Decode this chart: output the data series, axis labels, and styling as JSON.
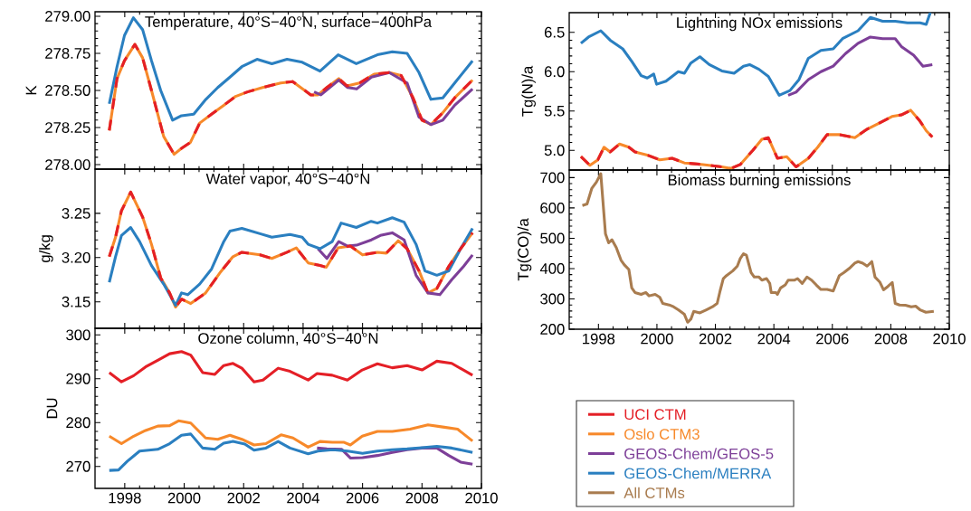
{
  "chart_data": [
    {
      "type": "line",
      "title": "Temperature, 40°S−40°N, surface−400hPa",
      "ylabel": "K",
      "xlim": [
        1997,
        2010
      ],
      "xticks": [
        1998,
        2000,
        2002,
        2004,
        2006,
        2008,
        2010
      ],
      "ylim": [
        277.97,
        279.03
      ],
      "yticks": [
        {
          "value": 278,
          "label": "278.00"
        },
        {
          "value": 278.25,
          "label": "278.25"
        },
        {
          "value": 278.5,
          "label": "278.50"
        },
        {
          "value": 278.75,
          "label": "278.75"
        },
        {
          "value": 279,
          "label": "279.00"
        }
      ],
      "tick_labels": "y",
      "legend": "bottom right",
      "series": [
        {
          "name": "UCI CTM",
          "color": "#e41f26",
          "line_style": "dashed",
          "x": [
            1997.48,
            1997.74,
            1997.99,
            1998.34,
            1998.6,
            1998.9,
            1999.31,
            1999.66,
            1999.91,
            2000.21,
            2000.52,
            2000.92,
            2001.33,
            2001.73,
            2002.13,
            2002.64,
            2003.25,
            2003.65,
            2004.26,
            2004.5,
            2004.8,
            2005.2,
            2005.48,
            2005.9,
            2006.39,
            2006.9,
            2007.3,
            2007.7,
            2008.0,
            2008.3,
            2008.7,
            2009.1,
            2009.7
          ],
          "values": [
            278.23,
            278.58,
            278.7,
            278.81,
            278.72,
            278.5,
            278.19,
            278.07,
            278.11,
            278.15,
            278.28,
            278.34,
            278.4,
            278.46,
            278.49,
            278.52,
            278.55,
            278.56,
            278.47,
            278.47,
            278.52,
            278.58,
            278.53,
            278.55,
            278.61,
            278.62,
            278.6,
            278.45,
            278.3,
            278.27,
            278.35,
            278.45,
            278.57
          ]
        },
        {
          "name": "Oslo CTM3",
          "color": "#f7892a",
          "x": [
            1997.48,
            1997.74,
            1997.99,
            1998.34,
            1998.6,
            1998.9,
            1999.31,
            1999.66,
            1999.91,
            2000.21,
            2000.52,
            2000.92,
            2001.33,
            2001.73,
            2002.13,
            2002.64,
            2003.25,
            2003.65,
            2004.26,
            2004.5,
            2004.8,
            2005.2,
            2005.48,
            2005.9,
            2006.39,
            2006.9,
            2007.3,
            2007.7,
            2008.0,
            2008.3,
            2008.7,
            2009.1,
            2009.7
          ],
          "values": [
            278.23,
            278.58,
            278.7,
            278.81,
            278.72,
            278.5,
            278.19,
            278.07,
            278.11,
            278.15,
            278.28,
            278.34,
            278.4,
            278.46,
            278.49,
            278.52,
            278.55,
            278.56,
            278.47,
            278.47,
            278.52,
            278.58,
            278.53,
            278.55,
            278.61,
            278.62,
            278.6,
            278.45,
            278.3,
            278.27,
            278.35,
            278.45,
            278.57
          ]
        },
        {
          "name": "GEOS-Chem/GEOS-5",
          "color": "#7d3f98",
          "x": [
            2004.37,
            2004.6,
            2005.2,
            2005.5,
            2005.8,
            2006.3,
            2006.9,
            2007.5,
            2007.9,
            2008.3,
            2008.7,
            2009.1,
            2009.7
          ],
          "values": [
            278.49,
            278.47,
            278.57,
            278.52,
            278.51,
            278.59,
            278.62,
            278.55,
            278.32,
            278.27,
            278.3,
            278.4,
            278.51
          ]
        },
        {
          "name": "GEOS-Chem/MERRA",
          "color": "#2a7fc0",
          "x": [
            1997.48,
            1997.74,
            1997.99,
            1998.29,
            1998.6,
            1998.9,
            1999.21,
            1999.61,
            1999.91,
            2000.32,
            2000.73,
            2001.13,
            2001.54,
            2001.94,
            2002.45,
            2002.95,
            2003.46,
            2003.97,
            2004.57,
            2005.18,
            2005.79,
            2006.5,
            2007.0,
            2007.5,
            2007.9,
            2008.3,
            2008.7,
            2009.1,
            2009.7
          ],
          "values": [
            278.41,
            278.66,
            278.87,
            278.99,
            278.91,
            278.7,
            278.5,
            278.3,
            278.33,
            278.34,
            278.44,
            278.52,
            278.59,
            278.66,
            278.71,
            278.68,
            278.71,
            278.69,
            278.63,
            278.74,
            278.68,
            278.74,
            278.76,
            278.75,
            278.62,
            278.44,
            278.45,
            278.55,
            278.7
          ]
        }
      ]
    },
    {
      "type": "line",
      "title": "Water vapor, 40°S−40°N",
      "ylabel": "g/kg",
      "xlim": [
        1997,
        2010
      ],
      "xticks": [
        1998,
        2000,
        2002,
        2004,
        2006,
        2008,
        2010
      ],
      "ylim": [
        3.12,
        3.3
      ],
      "yticks": [
        3.15,
        {
          "value": 3.2,
          "label": "3.20"
        },
        3.25
      ],
      "tick_labels": "y",
      "series": [
        {
          "color": "#e41f26",
          "line_style": "dashed",
          "x": [
            1997.48,
            1997.69,
            1997.89,
            1998.2,
            1998.6,
            1998.9,
            1999.21,
            1999.51,
            1999.71,
            1999.91,
            2000.22,
            2000.72,
            2001.23,
            2001.64,
            2001.94,
            2002.55,
            2002.95,
            2003.46,
            2003.77,
            2004.17,
            2004.57,
            2004.78,
            2005.18,
            2005.59,
            2006.0,
            2006.5,
            2006.8,
            2007.2,
            2007.5,
            2007.9,
            2008.2,
            2008.5,
            2008.9,
            2009.3,
            2009.7
          ],
          "values": [
            3.201,
            3.223,
            3.253,
            3.274,
            3.246,
            3.215,
            3.177,
            3.16,
            3.144,
            3.153,
            3.148,
            3.16,
            3.184,
            3.201,
            3.206,
            3.203,
            3.199,
            3.206,
            3.211,
            3.194,
            3.191,
            3.189,
            3.211,
            3.213,
            3.203,
            3.206,
            3.205,
            3.219,
            3.21,
            3.185,
            3.16,
            3.165,
            3.19,
            3.21,
            3.228
          ]
        },
        {
          "color": "#f7892a",
          "x": [
            1997.48,
            1997.69,
            1997.89,
            1998.2,
            1998.6,
            1998.9,
            1999.21,
            1999.51,
            1999.71,
            1999.91,
            2000.22,
            2000.72,
            2001.23,
            2001.64,
            2001.94,
            2002.55,
            2002.95,
            2003.46,
            2003.77,
            2004.17,
            2004.57,
            2004.78,
            2005.18,
            2005.59,
            2006.0,
            2006.5,
            2006.8,
            2007.2,
            2007.5,
            2007.9,
            2008.2,
            2008.5,
            2008.9,
            2009.3,
            2009.7
          ],
          "values": [
            3.201,
            3.223,
            3.253,
            3.274,
            3.246,
            3.215,
            3.177,
            3.16,
            3.144,
            3.153,
            3.148,
            3.16,
            3.184,
            3.201,
            3.206,
            3.203,
            3.199,
            3.206,
            3.211,
            3.194,
            3.191,
            3.189,
            3.211,
            3.213,
            3.203,
            3.206,
            3.205,
            3.219,
            3.21,
            3.185,
            3.16,
            3.165,
            3.19,
            3.21,
            3.228
          ]
        },
        {
          "color": "#7d3f98",
          "x": [
            2004.5,
            2004.8,
            2005.2,
            2005.5,
            2005.8,
            2006.3,
            2006.6,
            2007.0,
            2007.4,
            2007.8,
            2008.2,
            2008.6,
            2009.0,
            2009.4,
            2009.7
          ],
          "values": [
            3.21,
            3.199,
            3.218,
            3.213,
            3.214,
            3.22,
            3.225,
            3.228,
            3.22,
            3.18,
            3.16,
            3.158,
            3.175,
            3.19,
            3.203
          ]
        },
        {
          "color": "#2a7fc0",
          "x": [
            1997.48,
            1997.69,
            1997.89,
            1998.2,
            1998.5,
            1998.9,
            1999.31,
            1999.71,
            1999.91,
            2000.12,
            2000.52,
            2000.92,
            2001.33,
            2001.54,
            2001.94,
            2002.55,
            2002.95,
            2003.56,
            2003.97,
            2004.17,
            2004.57,
            2004.98,
            2005.28,
            2005.79,
            2006.29,
            2006.5,
            2007.0,
            2007.4,
            2007.8,
            2008.1,
            2008.5,
            2008.9,
            2009.3,
            2009.7
          ],
          "values": [
            3.172,
            3.201,
            3.225,
            3.234,
            3.218,
            3.191,
            3.17,
            3.146,
            3.16,
            3.158,
            3.17,
            3.187,
            3.218,
            3.23,
            3.233,
            3.227,
            3.223,
            3.226,
            3.223,
            3.215,
            3.21,
            3.218,
            3.239,
            3.234,
            3.241,
            3.239,
            3.245,
            3.24,
            3.215,
            3.185,
            3.18,
            3.185,
            3.21,
            3.233
          ]
        }
      ]
    },
    {
      "type": "line",
      "title": "Ozone column, 40°S−40°N",
      "ylabel": "DU",
      "xlim": [
        1997,
        2010
      ],
      "xticks": [
        1998,
        2000,
        2002,
        2004,
        2006,
        2008,
        2010
      ],
      "ylim": [
        265,
        301.5
      ],
      "yticks": [
        270,
        280,
        290,
        300
      ],
      "series": [
        {
          "color": "#e41f26",
          "x": [
            1997.48,
            1997.89,
            1998.3,
            1998.7,
            1999.11,
            1999.51,
            1999.91,
            2000.22,
            2000.62,
            2001.03,
            2001.33,
            2001.64,
            2001.94,
            2002.35,
            2002.65,
            2003.16,
            2003.56,
            2004.17,
            2004.47,
            2004.98,
            2005.49,
            2005.99,
            2006.5,
            2007.0,
            2007.5,
            2008.0,
            2008.5,
            2009.0,
            2009.7
          ],
          "values": [
            291.4,
            289.3,
            290.7,
            292.7,
            294.2,
            295.7,
            296.2,
            295.4,
            291.4,
            291.0,
            293.0,
            293.5,
            292.4,
            289.3,
            289.7,
            292.4,
            291.7,
            289.7,
            291.2,
            290.8,
            289.7,
            292.0,
            293.4,
            292.5,
            293.0,
            292.0,
            294.0,
            293.5,
            290.8
          ]
        },
        {
          "color": "#f7892a",
          "x": [
            1997.48,
            1997.89,
            1998.3,
            1998.7,
            1999.11,
            1999.51,
            1999.81,
            2000.22,
            2000.72,
            2001.13,
            2001.54,
            2001.94,
            2002.35,
            2002.75,
            2003.26,
            2003.66,
            2004.17,
            2004.57,
            2004.98,
            2005.38,
            2005.59,
            2005.99,
            2006.5,
            2007.0,
            2007.6,
            2008.2,
            2008.7,
            2009.2,
            2009.7
          ],
          "values": [
            276.9,
            275.2,
            276.9,
            278.2,
            279.2,
            279.3,
            280.4,
            279.9,
            276.5,
            276.2,
            277.1,
            276.2,
            274.9,
            275.2,
            277.2,
            276.5,
            274.4,
            275.7,
            275.5,
            275.5,
            274.9,
            276.9,
            278.0,
            278.0,
            278.5,
            279.5,
            279.0,
            278.5,
            275.8
          ]
        },
        {
          "color": "#7d3f98",
          "x": [
            2004.47,
            2004.8,
            2005.3,
            2005.6,
            2006.0,
            2006.5,
            2007.0,
            2007.5,
            2008.0,
            2008.5,
            2008.9,
            2009.3,
            2009.7
          ],
          "values": [
            274.2,
            274.0,
            273.9,
            271.9,
            272.0,
            272.5,
            273.2,
            273.8,
            274.2,
            274.2,
            272.5,
            271.0,
            270.5
          ]
        },
        {
          "color": "#2a7fc0",
          "x": [
            1997.48,
            1997.79,
            1998.09,
            1998.5,
            1999.11,
            1999.51,
            1999.91,
            2000.22,
            2000.62,
            2001.03,
            2001.33,
            2001.64,
            2002.04,
            2002.35,
            2002.75,
            2003.16,
            2003.56,
            2004.17,
            2004.5,
            2005.0,
            2005.5,
            2006.0,
            2006.5,
            2007.0,
            2007.5,
            2008.0,
            2008.5,
            2009.0,
            2009.7
          ],
          "values": [
            269.1,
            269.2,
            271.2,
            273.5,
            273.9,
            275.2,
            277.1,
            277.4,
            274.2,
            273.9,
            275.3,
            275.7,
            275.1,
            273.7,
            274.2,
            275.7,
            274.2,
            272.9,
            273.5,
            273.8,
            273.5,
            273.0,
            273.5,
            273.8,
            274.0,
            274.3,
            274.6,
            274.2,
            273.2
          ]
        }
      ]
    },
    {
      "type": "line",
      "title": "Lightning NOx emissions",
      "ylabel": "Tg(N)/a",
      "xlim": [
        1997,
        2010
      ],
      "xticks": [
        1998,
        2000,
        2002,
        2004,
        2006,
        2008,
        2010
      ],
      "ylim": [
        4.75,
        6.75
      ],
      "yticks": [
        {
          "value": 5,
          "label": "5.0"
        },
        5.5,
        {
          "value": 6,
          "label": "6.0"
        },
        6.5
      ],
      "tick_labels": "y",
      "series": [
        {
          "color": "#e41f26",
          "line_style": "dashed",
          "x": [
            1997.4,
            1997.71,
            1997.98,
            1998.19,
            1998.4,
            1998.72,
            1999.04,
            1999.25,
            1999.67,
            2000.1,
            2000.52,
            2000.94,
            2001.58,
            2002.22,
            2002.53,
            2002.85,
            2003.28,
            2003.59,
            2003.81,
            2004.12,
            2004.44,
            2004.76,
            2005.18,
            2005.5,
            2005.82,
            2006.24,
            2006.77,
            2007.19,
            2007.62,
            2008.04,
            2008.36,
            2008.68,
            2009.0,
            2009.21,
            2009.42
          ],
          "values": [
            4.92,
            4.81,
            4.88,
            5.04,
            4.98,
            5.08,
            5.04,
            4.98,
            4.94,
            4.88,
            4.9,
            4.84,
            4.82,
            4.79,
            4.77,
            4.82,
            5.0,
            5.14,
            5.16,
            4.9,
            4.92,
            4.79,
            4.9,
            5.04,
            5.2,
            5.2,
            5.16,
            5.27,
            5.35,
            5.43,
            5.45,
            5.51,
            5.37,
            5.25,
            5.17
          ]
        },
        {
          "color": "#f7892a",
          "x": [
            1997.4,
            1997.71,
            1997.98,
            1998.19,
            1998.4,
            1998.72,
            1999.04,
            1999.25,
            1999.67,
            2000.1,
            2000.52,
            2000.94,
            2001.58,
            2002.22,
            2002.53,
            2002.85,
            2003.28,
            2003.59,
            2003.81,
            2004.12,
            2004.44,
            2004.76,
            2005.18,
            2005.5,
            2005.82,
            2006.24,
            2006.77,
            2007.19,
            2007.62,
            2008.04,
            2008.36,
            2008.68,
            2009.0,
            2009.21,
            2009.42
          ],
          "values": [
            4.92,
            4.81,
            4.88,
            5.04,
            4.98,
            5.08,
            5.04,
            4.98,
            4.94,
            4.88,
            4.9,
            4.84,
            4.82,
            4.79,
            4.77,
            4.82,
            5.0,
            5.14,
            5.16,
            4.9,
            4.92,
            4.79,
            4.9,
            5.04,
            5.2,
            5.2,
            5.16,
            5.27,
            5.35,
            5.43,
            5.45,
            5.51,
            5.37,
            5.25,
            5.17
          ]
        },
        {
          "color": "#7d3f98",
          "x": [
            2004.49,
            2004.76,
            2005.18,
            2005.61,
            2006.03,
            2006.45,
            2006.88,
            2007.3,
            2007.72,
            2008.15,
            2008.36,
            2008.78,
            2009.1,
            2009.42
          ],
          "values": [
            5.7,
            5.74,
            5.9,
            6.0,
            6.07,
            6.23,
            6.36,
            6.44,
            6.42,
            6.42,
            6.32,
            6.21,
            6.07,
            6.09
          ]
        },
        {
          "color": "#2a7fc0",
          "x": [
            1997.4,
            1997.66,
            1998.08,
            1998.4,
            1998.83,
            1999.14,
            1999.46,
            1999.67,
            1999.89,
            1999.99,
            2000.31,
            2000.73,
            2000.94,
            2001.16,
            2001.47,
            2001.79,
            2002.22,
            2002.64,
            2002.96,
            2003.17,
            2003.49,
            2003.81,
            2004.18,
            2004.55,
            2004.86,
            2005.18,
            2005.61,
            2006.03,
            2006.35,
            2006.88,
            2007.3,
            2007.72,
            2008.15,
            2008.57,
            2009.0,
            2009.21,
            2009.35
          ],
          "values": [
            6.36,
            6.44,
            6.52,
            6.4,
            6.29,
            6.13,
            5.95,
            5.92,
            5.97,
            5.84,
            5.88,
            6.0,
            5.98,
            6.11,
            6.19,
            6.09,
            6.01,
            5.98,
            6.07,
            6.09,
            6.03,
            5.94,
            5.7,
            5.76,
            5.9,
            6.17,
            6.27,
            6.29,
            6.42,
            6.52,
            6.69,
            6.64,
            6.64,
            6.62,
            6.62,
            6.6,
            6.75
          ]
        }
      ]
    },
    {
      "type": "line",
      "title": "Biomass burning emissions",
      "ylabel": "Tg(CO)/a",
      "xlim": [
        1997,
        2010
      ],
      "xticks": [
        1998,
        2000,
        2002,
        2004,
        2006,
        2008,
        2010
      ],
      "ylim": [
        200,
        725
      ],
      "yticks": [
        200,
        300,
        400,
        500,
        600,
        700
      ],
      "legend": "bottom",
      "series": [
        {
          "name": "All CTMs",
          "color": "#a97c4f",
          "x": [
            1997.45,
            1997.61,
            1997.77,
            1997.93,
            1998.08,
            1998.24,
            1998.35,
            1998.46,
            1998.61,
            1998.77,
            1998.88,
            1999.04,
            1999.14,
            1999.25,
            1999.46,
            1999.62,
            1999.73,
            1999.94,
            2000.1,
            2000.2,
            2000.42,
            2000.57,
            2000.73,
            2000.94,
            2001.05,
            2001.16,
            2001.26,
            2001.47,
            2001.69,
            2001.9,
            2002.06,
            2002.16,
            2002.27,
            2002.38,
            2002.59,
            2002.75,
            2002.85,
            2002.96,
            2003.06,
            2003.22,
            2003.33,
            2003.49,
            2003.59,
            2003.75,
            2003.86,
            2003.91,
            2004.07,
            2004.12,
            2004.23,
            2004.39,
            2004.49,
            2004.71,
            2004.81,
            2004.97,
            2005.13,
            2005.29,
            2005.45,
            2005.61,
            2005.82,
            2006.03,
            2006.24,
            2006.4,
            2006.61,
            2006.77,
            2006.88,
            2007.04,
            2007.19,
            2007.35,
            2007.46,
            2007.62,
            2007.75,
            2007.9,
            2008.05,
            2008.15,
            2008.3,
            2008.5,
            2008.7,
            2008.85,
            2009.0,
            2009.2,
            2009.47
          ],
          "values": [
            608,
            613,
            664,
            685,
            713,
            515,
            485,
            495,
            469,
            428,
            413,
            397,
            336,
            321,
            315,
            321,
            310,
            315,
            305,
            285,
            280,
            274,
            264,
            249,
            223,
            233,
            259,
            254,
            264,
            274,
            285,
            326,
            367,
            377,
            392,
            408,
            433,
            449,
            444,
            387,
            372,
            372,
            362,
            367,
            351,
            321,
            321,
            315,
            336,
            346,
            362,
            362,
            367,
            351,
            372,
            362,
            346,
            331,
            331,
            326,
            377,
            387,
            403,
            418,
            423,
            418,
            408,
            423,
            372,
            356,
            330,
            341,
            354,
            285,
            280,
            279,
            274,
            276,
            264,
            256,
            259
          ]
        }
      ]
    }
  ]
}
